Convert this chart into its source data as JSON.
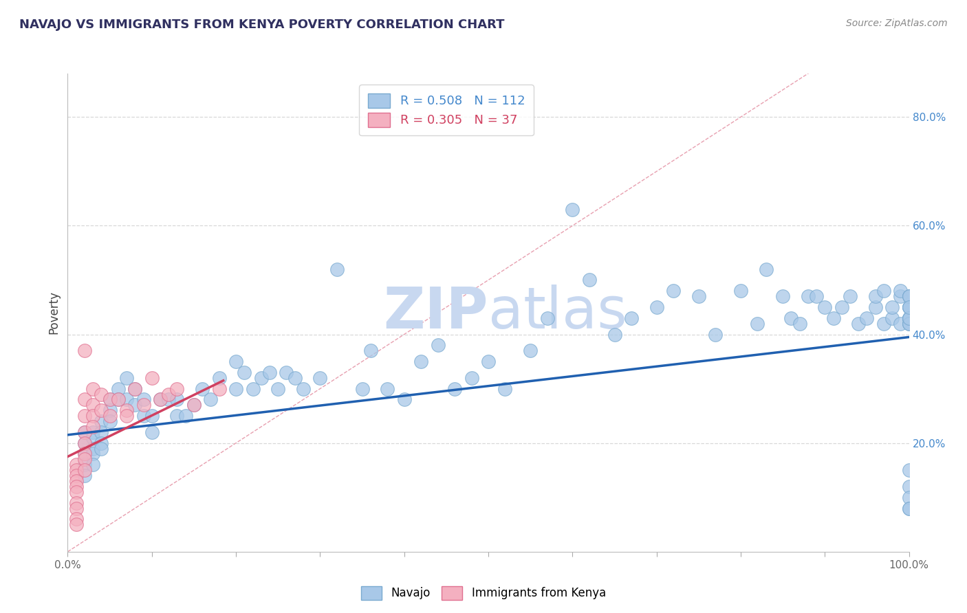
{
  "title": "NAVAJO VS IMMIGRANTS FROM KENYA POVERTY CORRELATION CHART",
  "source": "Source: ZipAtlas.com",
  "ylabel": "Poverty",
  "xlim": [
    0.0,
    1.0
  ],
  "ylim": [
    0.0,
    0.88
  ],
  "xticks": [
    0.0,
    0.1,
    0.2,
    0.3,
    0.4,
    0.5,
    0.6,
    0.7,
    0.8,
    0.9,
    1.0
  ],
  "xticklabels": [
    "0.0%",
    "",
    "",
    "",
    "",
    "",
    "",
    "",
    "",
    "",
    "100.0%"
  ],
  "ytick_positions": [
    0.2,
    0.4,
    0.6,
    0.8
  ],
  "yticklabels": [
    "20.0%",
    "40.0%",
    "60.0%",
    "80.0%"
  ],
  "navajo_R": 0.508,
  "navajo_N": 112,
  "kenya_R": 0.305,
  "kenya_N": 37,
  "navajo_color": "#a8c8e8",
  "navajo_edge_color": "#7aaad0",
  "kenya_color": "#f4b0c0",
  "kenya_edge_color": "#e07090",
  "navajo_line_color": "#2060b0",
  "kenya_line_color": "#d04060",
  "diagonal_color": "#e8a0b0",
  "background_color": "#ffffff",
  "grid_color": "#d8d8d8",
  "title_color": "#303060",
  "source_color": "#888888",
  "watermark_color_zip": "#c8d8f0",
  "watermark_color_atlas": "#c8d8f0",
  "tick_label_color": "#4488cc",
  "navajo_x": [
    0.02,
    0.02,
    0.02,
    0.02,
    0.02,
    0.03,
    0.03,
    0.03,
    0.03,
    0.03,
    0.04,
    0.04,
    0.04,
    0.04,
    0.05,
    0.05,
    0.05,
    0.06,
    0.06,
    0.07,
    0.07,
    0.08,
    0.08,
    0.09,
    0.09,
    0.1,
    0.1,
    0.11,
    0.12,
    0.13,
    0.13,
    0.14,
    0.15,
    0.16,
    0.17,
    0.18,
    0.2,
    0.2,
    0.21,
    0.22,
    0.23,
    0.24,
    0.25,
    0.26,
    0.27,
    0.28,
    0.3,
    0.32,
    0.35,
    0.36,
    0.38,
    0.4,
    0.42,
    0.44,
    0.46,
    0.48,
    0.5,
    0.52,
    0.55,
    0.57,
    0.6,
    0.62,
    0.65,
    0.67,
    0.7,
    0.72,
    0.75,
    0.77,
    0.8,
    0.82,
    0.83,
    0.85,
    0.86,
    0.87,
    0.88,
    0.89,
    0.9,
    0.91,
    0.92,
    0.93,
    0.94,
    0.95,
    0.96,
    0.96,
    0.97,
    0.97,
    0.98,
    0.98,
    0.99,
    0.99,
    0.99,
    1.0,
    1.0,
    1.0,
    1.0,
    1.0,
    1.0,
    1.0,
    1.0,
    1.0,
    1.0,
    1.0,
    1.0,
    1.0,
    1.0,
    1.0,
    1.0,
    1.0,
    1.0,
    1.0,
    1.0,
    1.0
  ],
  "navajo_y": [
    0.22,
    0.2,
    0.18,
    0.16,
    0.14,
    0.22,
    0.21,
    0.19,
    0.18,
    0.16,
    0.24,
    0.22,
    0.2,
    0.19,
    0.28,
    0.26,
    0.24,
    0.3,
    0.28,
    0.32,
    0.28,
    0.3,
    0.27,
    0.28,
    0.25,
    0.25,
    0.22,
    0.28,
    0.28,
    0.28,
    0.25,
    0.25,
    0.27,
    0.3,
    0.28,
    0.32,
    0.35,
    0.3,
    0.33,
    0.3,
    0.32,
    0.33,
    0.3,
    0.33,
    0.32,
    0.3,
    0.32,
    0.52,
    0.3,
    0.37,
    0.3,
    0.28,
    0.35,
    0.38,
    0.3,
    0.32,
    0.35,
    0.3,
    0.37,
    0.43,
    0.63,
    0.5,
    0.4,
    0.43,
    0.45,
    0.48,
    0.47,
    0.4,
    0.48,
    0.42,
    0.52,
    0.47,
    0.43,
    0.42,
    0.47,
    0.47,
    0.45,
    0.43,
    0.45,
    0.47,
    0.42,
    0.43,
    0.45,
    0.47,
    0.42,
    0.48,
    0.43,
    0.45,
    0.47,
    0.42,
    0.48,
    0.43,
    0.45,
    0.47,
    0.43,
    0.42,
    0.43,
    0.45,
    0.47,
    0.42,
    0.43,
    0.45,
    0.47,
    0.43,
    0.42,
    0.43,
    0.45,
    0.15,
    0.12,
    0.1,
    0.08,
    0.08
  ],
  "kenya_x": [
    0.01,
    0.01,
    0.01,
    0.01,
    0.01,
    0.01,
    0.01,
    0.01,
    0.01,
    0.01,
    0.02,
    0.02,
    0.02,
    0.02,
    0.02,
    0.02,
    0.02,
    0.02,
    0.03,
    0.03,
    0.03,
    0.03,
    0.04,
    0.04,
    0.05,
    0.05,
    0.06,
    0.07,
    0.07,
    0.08,
    0.09,
    0.1,
    0.11,
    0.12,
    0.13,
    0.15,
    0.18
  ],
  "kenya_y": [
    0.16,
    0.15,
    0.14,
    0.13,
    0.12,
    0.11,
    0.09,
    0.08,
    0.06,
    0.05,
    0.37,
    0.28,
    0.25,
    0.22,
    0.2,
    0.18,
    0.17,
    0.15,
    0.3,
    0.27,
    0.25,
    0.23,
    0.29,
    0.26,
    0.28,
    0.25,
    0.28,
    0.26,
    0.25,
    0.3,
    0.27,
    0.32,
    0.28,
    0.29,
    0.3,
    0.27,
    0.3
  ],
  "navajo_line_x0": 0.0,
  "navajo_line_x1": 1.0,
  "navajo_line_y0": 0.215,
  "navajo_line_y1": 0.395,
  "kenya_line_x0": 0.0,
  "kenya_line_x1": 0.185,
  "kenya_line_y0": 0.175,
  "kenya_line_y1": 0.315
}
